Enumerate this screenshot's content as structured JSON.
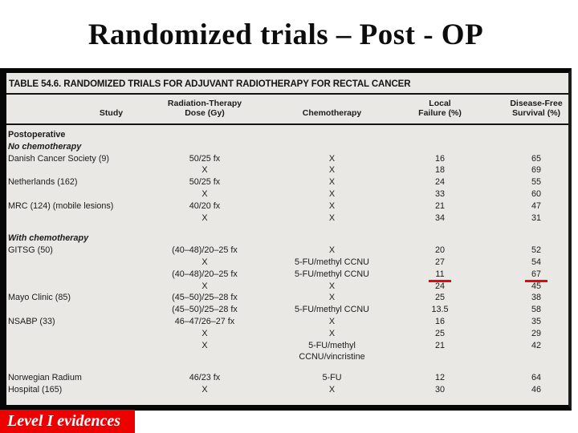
{
  "slide": {
    "title": "Randomized trials – Post - OP",
    "footer_badge": "Level I evidences"
  },
  "colors": {
    "badge_red": "#ee0000",
    "accent_red": "#e30613",
    "scan_bg": "#e9e8e4",
    "ink": "#1b1b1b"
  },
  "table": {
    "caption": "TABLE 54.6. RANDOMIZED TRIALS FOR ADJUVANT RADIOTHERAPY FOR RECTAL CANCER",
    "columns": [
      "Study",
      "Radiation-Therapy\nDose (Gy)",
      "Chemotherapy",
      "Local\nFailure (%)",
      "Disease-Free\nSurvival (%)"
    ],
    "rows": [
      {
        "type": "section",
        "label": "Postoperative",
        "emphasis": "bold"
      },
      {
        "type": "section",
        "label": "No chemotherapy",
        "emphasis": "italic"
      },
      {
        "type": "data",
        "study": "Danish Cancer Society (9)",
        "dose": "50/25 fx",
        "chemo": "X",
        "local_failure": "16",
        "dfs": "65"
      },
      {
        "type": "data",
        "study": "",
        "dose": "X",
        "chemo": "X",
        "local_failure": "18",
        "dfs": "69"
      },
      {
        "type": "data",
        "study": "Netherlands (162)",
        "dose": "50/25 fx",
        "chemo": "X",
        "local_failure": "24",
        "dfs": "55"
      },
      {
        "type": "data",
        "study": "",
        "dose": "X",
        "chemo": "X",
        "local_failure": "33",
        "dfs": "60"
      },
      {
        "type": "data",
        "study": "MRC (124) (mobile lesions)",
        "dose": "40/20 fx",
        "chemo": "X",
        "local_failure": "21",
        "dfs": "47"
      },
      {
        "type": "data",
        "study": "",
        "dose": "X",
        "chemo": "X",
        "local_failure": "34",
        "dfs": "31"
      },
      {
        "type": "spacer"
      },
      {
        "type": "section",
        "label": "With chemotherapy",
        "emphasis": "italic"
      },
      {
        "type": "data",
        "study": "GITSG (50)",
        "dose": "(40–48)/20–25 fx",
        "chemo": "X",
        "local_failure": "20",
        "dfs": "52"
      },
      {
        "type": "data",
        "study": "",
        "dose": "X",
        "chemo": "5-FU/methyl CCNU",
        "local_failure": "27",
        "dfs": "54"
      },
      {
        "type": "data",
        "study": "",
        "dose": "(40–48)/20–25 fx",
        "chemo": "5-FU/methyl CCNU",
        "local_failure": "11",
        "dfs": "67",
        "highlight": true
      },
      {
        "type": "data",
        "study": "",
        "dose": "X",
        "chemo": "X",
        "local_failure": "24",
        "dfs": "45"
      },
      {
        "type": "data",
        "study": "Mayo Clinic (85)",
        "dose": "(45–50)/25–28 fx",
        "chemo": "X",
        "local_failure": "25",
        "dfs": "38"
      },
      {
        "type": "data",
        "study": "",
        "dose": "(45–50)/25–28 fx",
        "chemo": "5-FU/methyl CCNU",
        "local_failure": "13.5",
        "dfs": "58"
      },
      {
        "type": "data",
        "study": "NSABP (33)",
        "dose": "46–47/26–27 fx",
        "chemo": "X",
        "local_failure": "16",
        "dfs": "35"
      },
      {
        "type": "data",
        "study": "",
        "dose": "X",
        "chemo": "X",
        "local_failure": "25",
        "dfs": "29"
      },
      {
        "type": "data",
        "study": "",
        "dose": "X",
        "chemo": "5-FU/methyl",
        "local_failure": "21",
        "dfs": "42"
      },
      {
        "type": "data",
        "study": "",
        "dose": "",
        "chemo": "CCNU/vincristine",
        "local_failure": "",
        "dfs": ""
      },
      {
        "type": "spacer"
      },
      {
        "type": "data",
        "study": "Norwegian Radium",
        "dose": "46/23 fx",
        "chemo": "5-FU",
        "local_failure": "12",
        "dfs": "64"
      },
      {
        "type": "data",
        "study": "Hospital (165)",
        "dose": "X",
        "chemo": "X",
        "local_failure": "30",
        "dfs": "46"
      }
    ]
  }
}
